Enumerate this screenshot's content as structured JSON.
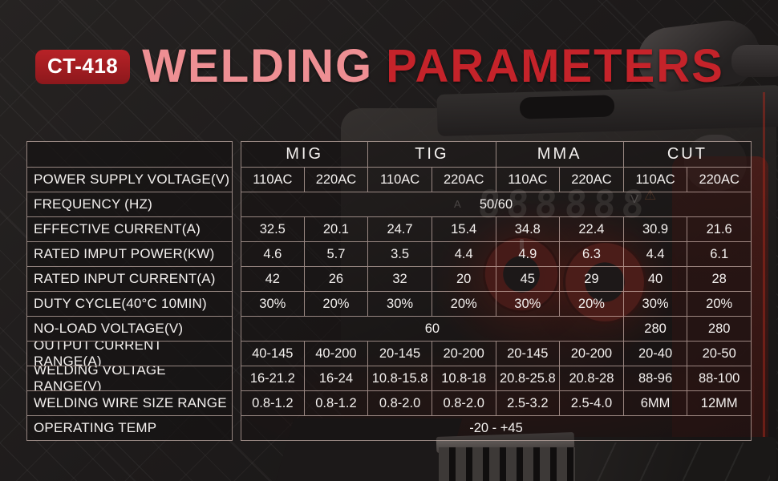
{
  "header": {
    "model_badge": "CT-418",
    "title_primary": "WELDING",
    "title_secondary": "PARAMETERS"
  },
  "colors": {
    "title_primary": "#ee8f93",
    "title_secondary": "#c5232a",
    "badge_red": "#a81e22",
    "table_border": "rgba(255,228,218,0.55)",
    "knob_red": "#8d2b23",
    "background": "#1e1b1b"
  },
  "background_art": {
    "display_digits_left": "888",
    "display_digits_right": "888",
    "unit_ampere": "A",
    "unit_volt": "V",
    "warning_icon": "⚠"
  },
  "table": {
    "rows": [
      {
        "label": "",
        "type": "group-header",
        "cells": [
          {
            "text": "MIG",
            "span": 2
          },
          {
            "text": "TIG",
            "span": 2
          },
          {
            "text": "MMA",
            "span": 2
          },
          {
            "text": "CUT",
            "span": 2
          }
        ]
      },
      {
        "label": "POWER SUPPLY VOLTAGE(V)",
        "cells": [
          "110AC",
          "220AC",
          "110AC",
          "220AC",
          "110AC",
          "220AC",
          "110AC",
          "220AC"
        ]
      },
      {
        "label": "FREQUENCY (HZ)",
        "cells": [
          {
            "text": "50/60",
            "span": 8
          }
        ]
      },
      {
        "label": "EFFECTIVE CURRENT(A)",
        "cells": [
          "32.5",
          "20.1",
          "24.7",
          "15.4",
          "34.8",
          "22.4",
          "30.9",
          "21.6"
        ]
      },
      {
        "label": "RATED IMPUT POWER(KW)",
        "cells": [
          "4.6",
          "5.7",
          "3.5",
          "4.4",
          "4.9",
          "6.3",
          "4.4",
          "6.1"
        ]
      },
      {
        "label": "RATED INPUT CURRENT(A)",
        "cells": [
          "42",
          "26",
          "32",
          "20",
          "45",
          "29",
          "40",
          "28"
        ]
      },
      {
        "label": "DUTY CYCLE(40°C 10MIN)",
        "cells": [
          "30%",
          "20%",
          "30%",
          "20%",
          "30%",
          "20%",
          "30%",
          "20%"
        ]
      },
      {
        "label": "NO-LOAD VOLTAGE(V)",
        "cells": [
          {
            "text": "60",
            "span": 6
          },
          "280",
          "280"
        ]
      },
      {
        "label": "OUTPUT CURRENT RANGE(A)",
        "cells": [
          "40-145",
          "40-200",
          "20-145",
          "20-200",
          "20-145",
          "20-200",
          "20-40",
          "20-50"
        ]
      },
      {
        "label": "WELDING VOLTAGE RANGE(V)",
        "cells": [
          "16-21.2",
          "16-24",
          "10.8-15.8",
          "10.8-18",
          "20.8-25.8",
          "20.8-28",
          "88-96",
          "88-100"
        ]
      },
      {
        "label": "WELDING WIRE SIZE RANGE",
        "cells": [
          "0.8-1.2",
          "0.8-1.2",
          "0.8-2.0",
          "0.8-2.0",
          "2.5-3.2",
          "2.5-4.0",
          "6MM",
          "12MM"
        ]
      },
      {
        "label": "OPERATING TEMP",
        "cells": [
          {
            "text": "-20 - +45",
            "span": 8
          }
        ]
      }
    ]
  },
  "chart_data": {
    "type": "table",
    "title": "WELDING PARAMETERS",
    "column_groups": [
      "MIG",
      "TIG",
      "MMA",
      "CUT"
    ],
    "columns": [
      "MIG 110AC",
      "MIG 220AC",
      "TIG 110AC",
      "TIG 220AC",
      "MMA 110AC",
      "MMA 220AC",
      "CUT 110AC",
      "CUT 220AC"
    ],
    "rows": [
      {
        "parameter": "FREQUENCY (HZ)",
        "values": [
          "50/60",
          "50/60",
          "50/60",
          "50/60",
          "50/60",
          "50/60",
          "50/60",
          "50/60"
        ]
      },
      {
        "parameter": "EFFECTIVE CURRENT(A)",
        "values": [
          32.5,
          20.1,
          24.7,
          15.4,
          34.8,
          22.4,
          30.9,
          21.6
        ]
      },
      {
        "parameter": "RATED IMPUT POWER(KW)",
        "values": [
          4.6,
          5.7,
          3.5,
          4.4,
          4.9,
          6.3,
          4.4,
          6.1
        ]
      },
      {
        "parameter": "RATED INPUT CURRENT(A)",
        "values": [
          42,
          26,
          32,
          20,
          45,
          29,
          40,
          28
        ]
      },
      {
        "parameter": "DUTY CYCLE(40°C 10MIN)",
        "values": [
          "30%",
          "20%",
          "30%",
          "20%",
          "30%",
          "20%",
          "30%",
          "20%"
        ]
      },
      {
        "parameter": "NO-LOAD VOLTAGE(V)",
        "values": [
          60,
          60,
          60,
          60,
          60,
          60,
          280,
          280
        ]
      },
      {
        "parameter": "OUTPUT CURRENT RANGE(A)",
        "values": [
          "40-145",
          "40-200",
          "20-145",
          "20-200",
          "20-145",
          "20-200",
          "20-40",
          "20-50"
        ]
      },
      {
        "parameter": "WELDING VOLTAGE RANGE(V)",
        "values": [
          "16-21.2",
          "16-24",
          "10.8-15.8",
          "10.8-18",
          "20.8-25.8",
          "20.8-28",
          "88-96",
          "88-100"
        ]
      },
      {
        "parameter": "WELDING WIRE SIZE RANGE",
        "values": [
          "0.8-1.2",
          "0.8-1.2",
          "0.8-2.0",
          "0.8-2.0",
          "2.5-3.2",
          "2.5-4.0",
          "6MM",
          "12MM"
        ]
      },
      {
        "parameter": "OPERATING TEMP",
        "values": [
          "-20 - +45"
        ]
      }
    ]
  }
}
